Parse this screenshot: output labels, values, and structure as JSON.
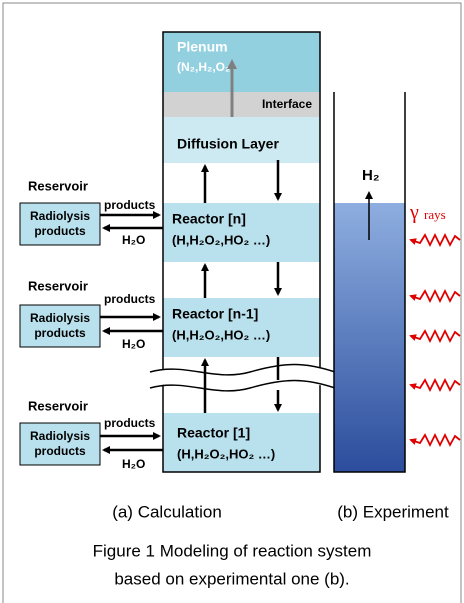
{
  "plenum": {
    "title": "Plenum",
    "species": "(N₂,H₂,O₂)"
  },
  "interface": "Interface",
  "diffusion_layer": "Diffusion Layer",
  "reactors": [
    {
      "label": "Reactor [n]",
      "species": "(H,H₂O₂,HO₂ …)"
    },
    {
      "label": "Reactor [n-1]",
      "species": "(H,H₂O₂,HO₂ …)"
    },
    {
      "label": "Reactor [1]",
      "species": "(H,H₂O₂,HO₂ …)"
    }
  ],
  "reservoirs": [
    {
      "title": "Reservoir",
      "box": [
        "Radiolysis",
        "products"
      ],
      "out": "products",
      "in": "H₂O"
    },
    {
      "title": "Reservoir",
      "box": [
        "Radiolysis",
        "products"
      ],
      "out": "products",
      "in": "H₂O"
    },
    {
      "title": "Reservoir",
      "box": [
        "Radiolysis",
        "products"
      ],
      "out": "products",
      "in": "H₂O"
    }
  ],
  "experiment": {
    "gas": "H₂",
    "gamma": "γ",
    "rays": "rays"
  },
  "captions": {
    "a": "(a)  Calculation",
    "b": "(b)  Experiment"
  },
  "figure_caption": [
    "Figure 1 Modeling of reaction system",
    "based on experimental one (b)."
  ]
}
